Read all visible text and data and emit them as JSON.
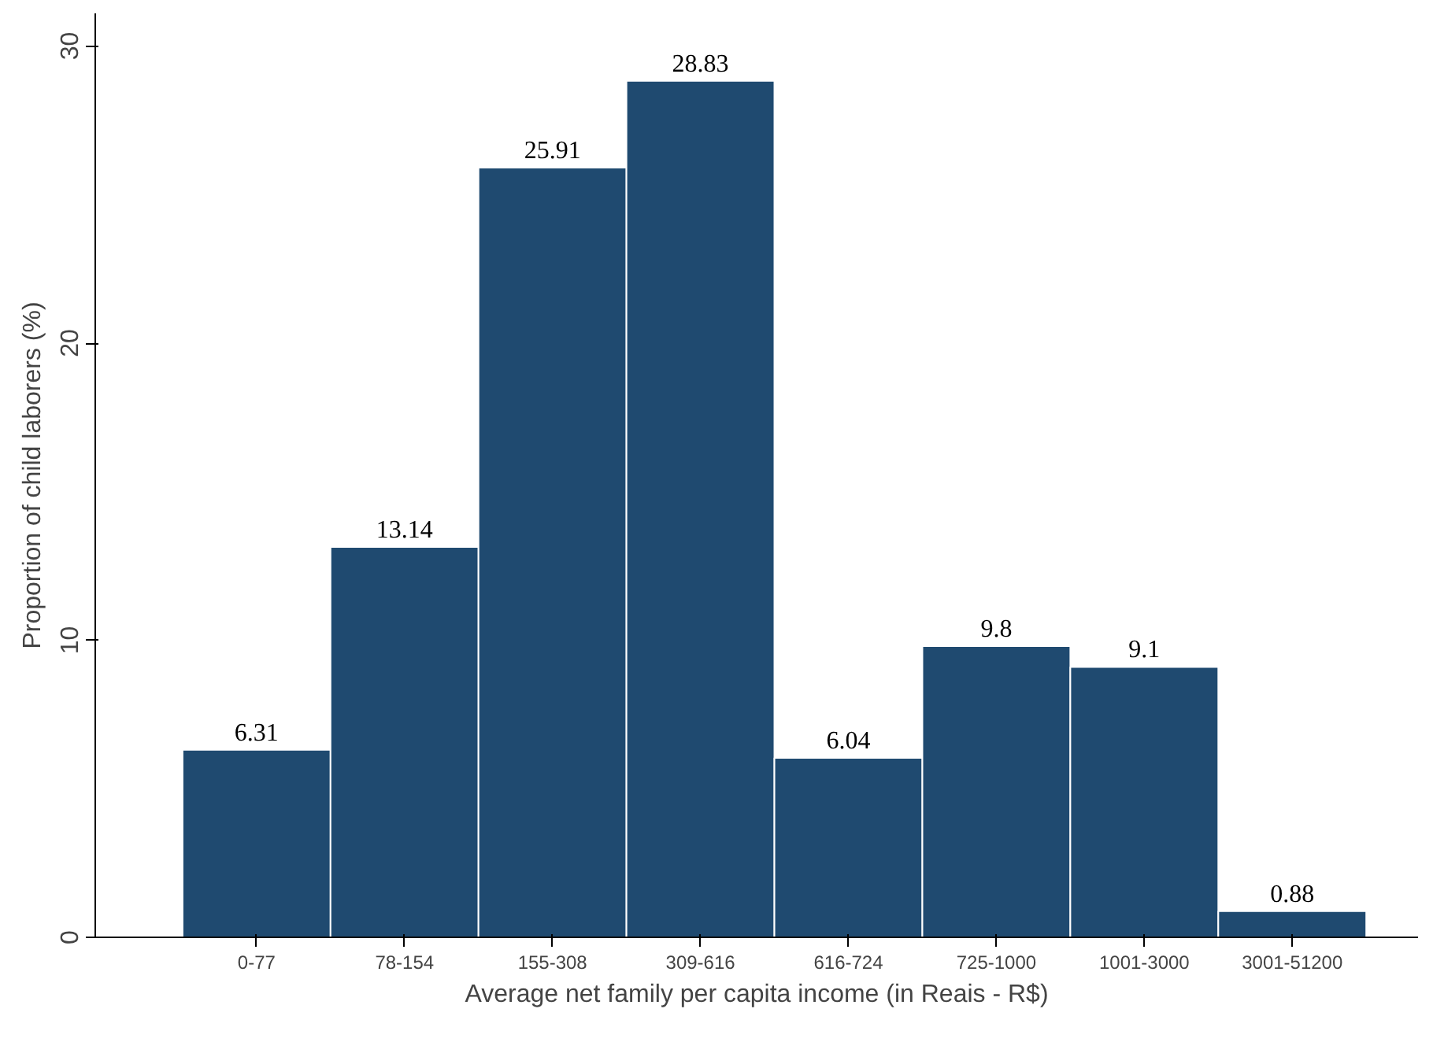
{
  "chart_data": {
    "type": "bar",
    "xlabel": "Average net family per capita income (in Reais - R$)",
    "ylabel": "Proportion of child laborers (%)",
    "categories": [
      "0-77",
      "78-154",
      "155-308",
      "309-616",
      "616-724",
      "725-1000",
      "1001-3000",
      "3001-51200"
    ],
    "values": [
      6.31,
      13.14,
      25.91,
      28.83,
      6.04,
      9.8,
      9.1,
      0.88
    ],
    "color": "#1f4a70",
    "ylim": [
      0,
      31.1
    ],
    "yticks": [
      0,
      10,
      20,
      30
    ],
    "grid": false,
    "data_labels": true
  }
}
